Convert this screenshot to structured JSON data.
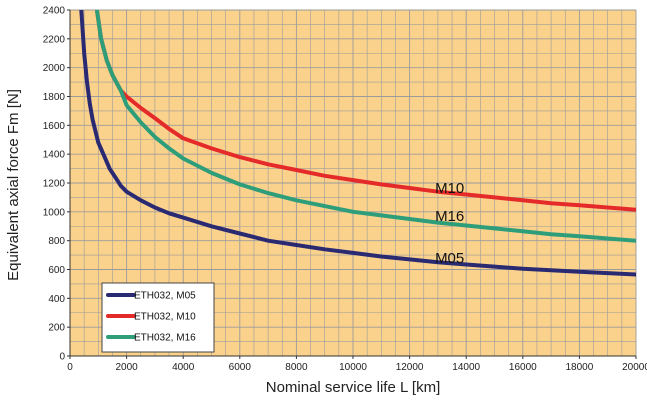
{
  "chart_data": {
    "type": "line",
    "title": "",
    "xlabel": "Nominal service life L [km]",
    "ylabel": "Equivalent axial force Fm [N]",
    "xlim": [
      0,
      20000
    ],
    "ylim": [
      0,
      2400
    ],
    "x_ticks": [
      "0",
      "2000",
      "4000",
      "6000",
      "8000",
      "10000",
      "12000",
      "14000",
      "16000",
      "18000",
      "20000"
    ],
    "y_ticks": [
      "0",
      "200",
      "400",
      "600",
      "800",
      "1000",
      "1200",
      "1400",
      "1600",
      "1800",
      "2000",
      "2200",
      "2400"
    ],
    "grid": true,
    "legend_position": "bottom-left",
    "plot_background": "#fbd28c",
    "grid_color": "#9b9b9b",
    "series": [
      {
        "name": "ETH032, M05",
        "color": "#2a2a72",
        "points": [
          [
            400,
            2400
          ],
          [
            500,
            2100
          ],
          [
            600,
            1900
          ],
          [
            700,
            1750
          ],
          [
            800,
            1640
          ],
          [
            1000,
            1480
          ],
          [
            1200,
            1390
          ],
          [
            1400,
            1300
          ],
          [
            1600,
            1240
          ],
          [
            1800,
            1180
          ],
          [
            2000,
            1140
          ],
          [
            2500,
            1080
          ],
          [
            3000,
            1030
          ],
          [
            3500,
            990
          ],
          [
            4000,
            960
          ],
          [
            5000,
            900
          ],
          [
            6000,
            850
          ],
          [
            7000,
            800
          ],
          [
            8000,
            770
          ],
          [
            9000,
            740
          ],
          [
            10000,
            715
          ],
          [
            11000,
            690
          ],
          [
            12000,
            670
          ],
          [
            13000,
            650
          ],
          [
            14000,
            635
          ],
          [
            15000,
            620
          ],
          [
            16000,
            605
          ],
          [
            17000,
            595
          ],
          [
            18000,
            585
          ],
          [
            19000,
            575
          ],
          [
            20000,
            565
          ]
        ]
      },
      {
        "name": "ETH032, M10",
        "color": "#e52a2a",
        "points": [
          [
            950,
            2400
          ],
          [
            1100,
            2200
          ],
          [
            1300,
            2050
          ],
          [
            1500,
            1950
          ],
          [
            1800,
            1840
          ],
          [
            2000,
            1800
          ],
          [
            2500,
            1720
          ],
          [
            3000,
            1650
          ],
          [
            3500,
            1575
          ],
          [
            4000,
            1510
          ],
          [
            5000,
            1440
          ],
          [
            6000,
            1380
          ],
          [
            7000,
            1330
          ],
          [
            8000,
            1290
          ],
          [
            9000,
            1250
          ],
          [
            10000,
            1220
          ],
          [
            11000,
            1190
          ],
          [
            12000,
            1165
          ],
          [
            13000,
            1140
          ],
          [
            14000,
            1120
          ],
          [
            15000,
            1100
          ],
          [
            16000,
            1080
          ],
          [
            17000,
            1060
          ],
          [
            18000,
            1045
          ],
          [
            19000,
            1030
          ],
          [
            20000,
            1015
          ]
        ]
      },
      {
        "name": "ETH032, M16",
        "color": "#2e9e7a",
        "points": [
          [
            950,
            2400
          ],
          [
            1100,
            2200
          ],
          [
            1300,
            2050
          ],
          [
            1500,
            1950
          ],
          [
            1800,
            1840
          ],
          [
            2000,
            1740
          ],
          [
            2500,
            1620
          ],
          [
            3000,
            1520
          ],
          [
            3500,
            1440
          ],
          [
            4000,
            1370
          ],
          [
            5000,
            1270
          ],
          [
            6000,
            1190
          ],
          [
            7000,
            1130
          ],
          [
            8000,
            1080
          ],
          [
            9000,
            1040
          ],
          [
            10000,
            1000
          ],
          [
            11000,
            975
          ],
          [
            12000,
            950
          ],
          [
            13000,
            925
          ],
          [
            14000,
            905
          ],
          [
            15000,
            885
          ],
          [
            16000,
            865
          ],
          [
            17000,
            845
          ],
          [
            18000,
            830
          ],
          [
            19000,
            815
          ],
          [
            20000,
            800
          ]
        ]
      }
    ],
    "annotations": [
      {
        "text": "M10",
        "x": 12900,
        "y": 1130
      },
      {
        "text": "M16",
        "x": 12900,
        "y": 935
      },
      {
        "text": "M05",
        "x": 12900,
        "y": 645
      }
    ]
  }
}
